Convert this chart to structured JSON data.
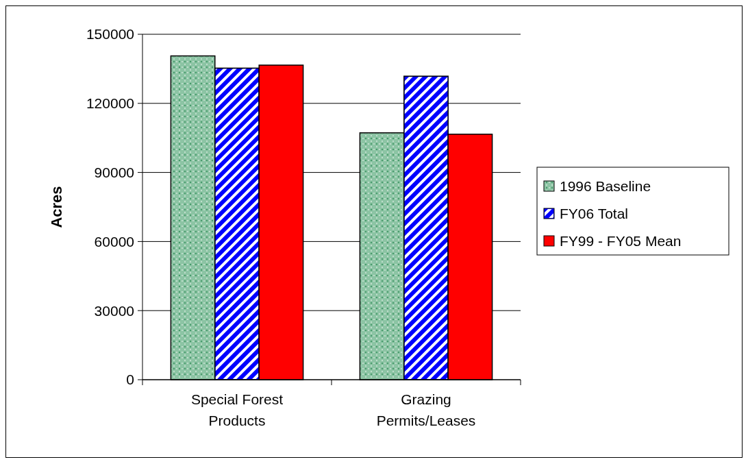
{
  "chart_data": {
    "type": "bar",
    "ylabel": "Acres",
    "categories": [
      "Special Forest Products",
      "Grazing Permits/Leases"
    ],
    "series": [
      {
        "name": "1996 Baseline",
        "color": "#8cc4a4",
        "values": [
          140600,
          107200
        ]
      },
      {
        "name": "FY06 Total",
        "color": "#0000ff",
        "values": [
          135300,
          131800
        ]
      },
      {
        "name": "FY99 - FY05 Mean",
        "color": "#ff0000",
        "values": [
          136600,
          106600
        ]
      }
    ],
    "ylim": [
      0,
      150000
    ],
    "yticks": [
      0,
      30000,
      60000,
      90000,
      120000,
      150000
    ],
    "grid": "y",
    "legend": "right"
  }
}
